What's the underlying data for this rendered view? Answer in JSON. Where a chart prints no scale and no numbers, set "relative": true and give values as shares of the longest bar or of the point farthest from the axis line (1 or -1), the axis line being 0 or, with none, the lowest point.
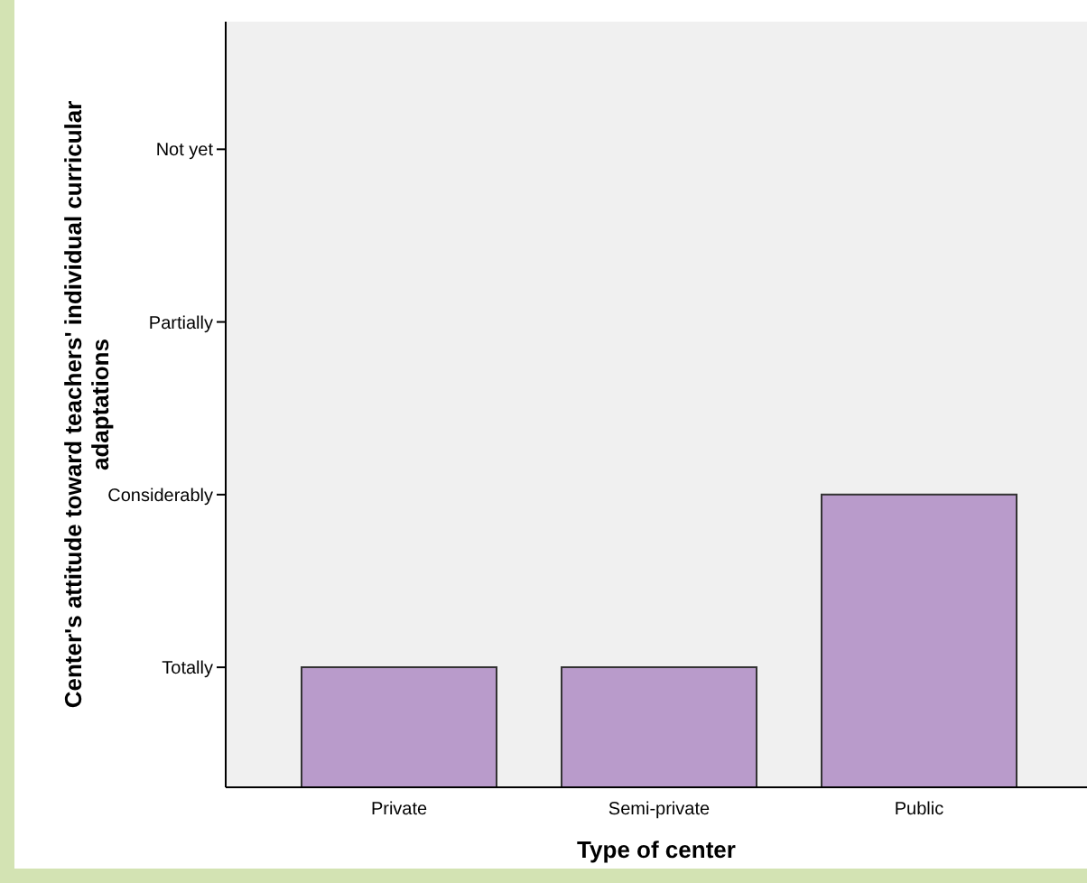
{
  "chart_data": {
    "type": "bar",
    "xlabel": "Type of center",
    "ylabel": "Center's attitude toward teachers' individual curricular adaptations",
    "categories": [
      "Private",
      "Semi-private",
      "Public"
    ],
    "values": [
      0.41,
      0.41,
      1
    ],
    "color": "#b99bcb",
    "relative": true,
    "annotations": [
      "Totally",
      "Considerably",
      "Partially",
      "Not yet"
    ]
  }
}
